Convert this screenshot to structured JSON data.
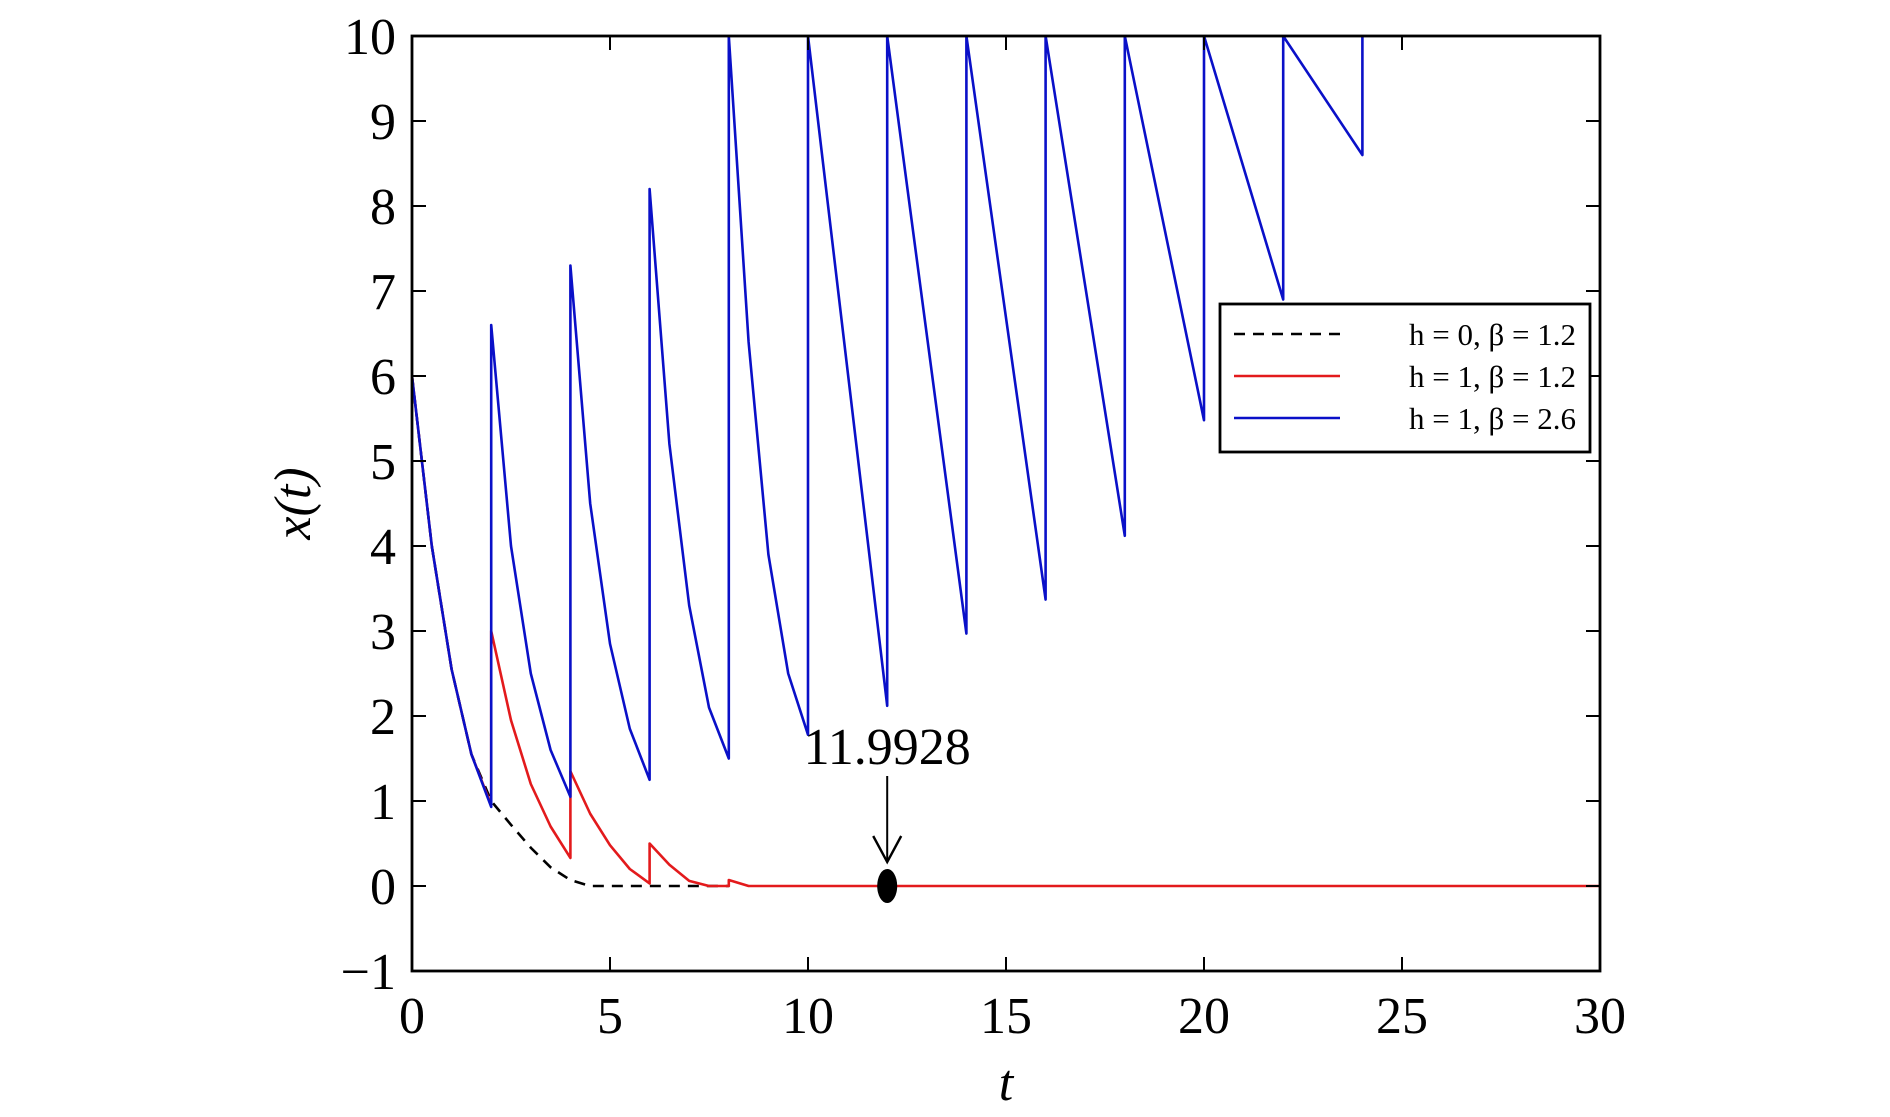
{
  "chart_data": {
    "type": "line",
    "title": "",
    "xlabel": "t",
    "ylabel": "x(t)",
    "xlim": [
      0,
      30
    ],
    "ylim": [
      -1,
      10
    ],
    "xticks": [
      0,
      5,
      10,
      15,
      20,
      25,
      30
    ],
    "yticks": [
      -1,
      0,
      1,
      2,
      3,
      4,
      5,
      6,
      7,
      8,
      9,
      10
    ],
    "xtick_labels": [
      "0",
      "5",
      "10",
      "15",
      "20",
      "25",
      "30"
    ],
    "ytick_labels": [
      "−1",
      "0",
      "1",
      "2",
      "3",
      "4",
      "5",
      "6",
      "7",
      "8",
      "9",
      "10"
    ],
    "grid": false,
    "legend_position": "right",
    "series": [
      {
        "name": "h = 0, β = 1.2",
        "color": "#000000",
        "dash": "dashed",
        "x": [
          0,
          0.5,
          1,
          1.5,
          2,
          2.5,
          3,
          3.5,
          4,
          4.5,
          5,
          6,
          7,
          8
        ],
        "y": [
          6,
          4.0,
          2.55,
          1.55,
          1.0,
          0.72,
          0.45,
          0.22,
          0.07,
          0.0,
          0.0,
          0.0,
          0.0,
          0.0
        ]
      },
      {
        "name": "h = 1, β = 1.2",
        "color": "#e31a1c",
        "dash": "solid",
        "x": [
          0,
          0.5,
          1,
          1.5,
          2,
          2.0,
          2.5,
          3,
          3.5,
          4,
          4.0,
          4.5,
          5,
          5.5,
          6,
          6.0,
          6.5,
          7,
          7.5,
          8,
          8.0,
          8.5,
          9,
          12,
          30
        ],
        "y": [
          6,
          4.0,
          2.55,
          1.55,
          0.95,
          3.0,
          1.95,
          1.2,
          0.7,
          0.33,
          1.35,
          0.85,
          0.48,
          0.2,
          0.03,
          0.5,
          0.25,
          0.06,
          0.0,
          0.0,
          0.07,
          0.0,
          0.0,
          0.0,
          0.0
        ]
      },
      {
        "name": "h = 1, β = 2.6",
        "color": "#0a10c8",
        "dash": "solid",
        "x": [
          0,
          0.5,
          1,
          1.5,
          2,
          2.0,
          2.5,
          3,
          3.5,
          4,
          4.0,
          4.5,
          5,
          5.5,
          6,
          6.0,
          6.5,
          7,
          7.5,
          8,
          8.0,
          8.5,
          9,
          9.5,
          10,
          10.0,
          12,
          12.0,
          14,
          14.0,
          16,
          16.0,
          18,
          18.0,
          20,
          20.0,
          22,
          22.0,
          24,
          24.0
        ],
        "y": [
          6,
          4.0,
          2.55,
          1.55,
          0.93,
          6.6,
          4.0,
          2.5,
          1.6,
          1.05,
          7.3,
          4.5,
          2.85,
          1.85,
          1.25,
          8.2,
          5.2,
          3.3,
          2.1,
          1.5,
          10.0,
          6.4,
          3.9,
          2.5,
          1.78,
          10.0,
          2.12,
          10.0,
          2.97,
          10.0,
          3.37,
          10.0,
          4.12,
          10.0,
          5.48,
          10.0,
          6.9,
          10.0,
          8.6,
          10.0
        ]
      }
    ],
    "annotations": [
      {
        "text": "11.9928",
        "x": 12,
        "y": 0
      }
    ]
  }
}
